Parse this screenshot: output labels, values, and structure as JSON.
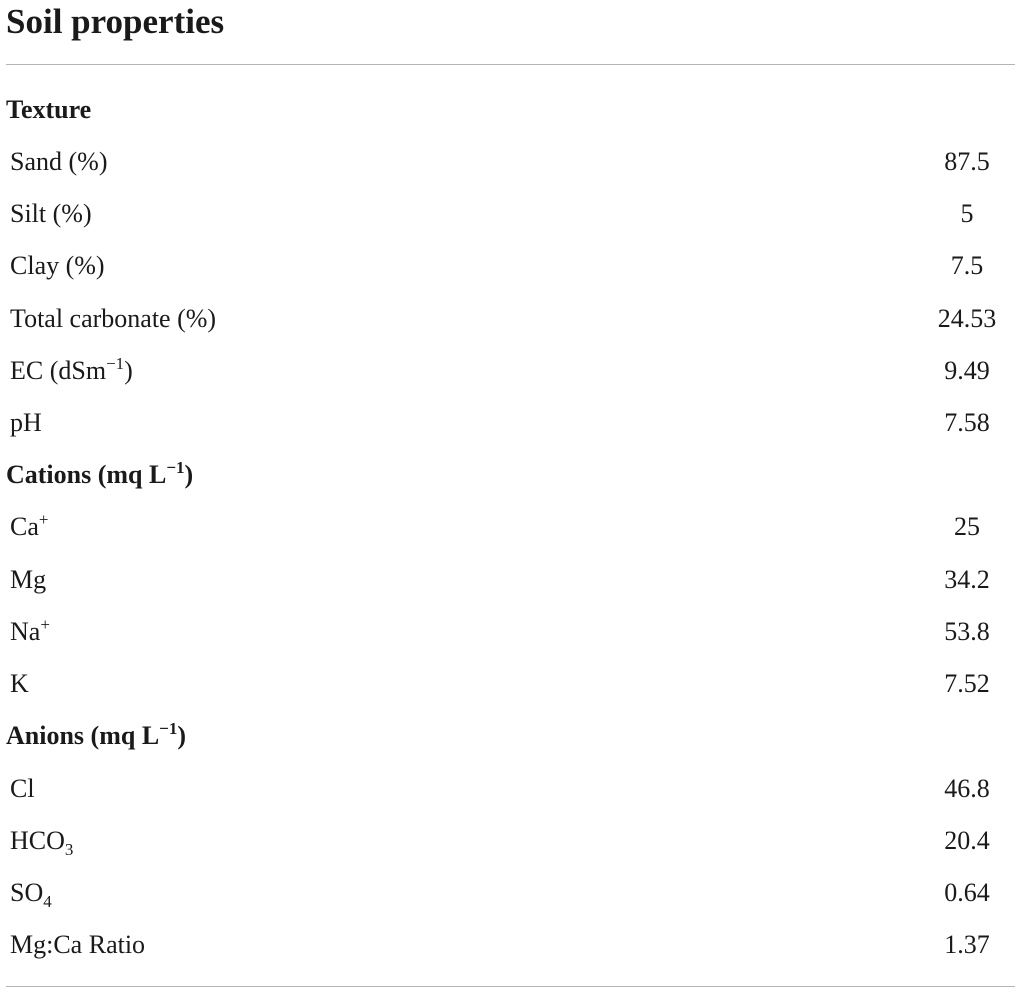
{
  "title": "Soil properties",
  "sections": [
    {
      "heading": "Texture",
      "rows": [
        {
          "label": "Sand (%)",
          "value": "87.5"
        },
        {
          "label": "Silt (%)",
          "value": "5"
        },
        {
          "label": "Clay (%)",
          "value": "7.5"
        },
        {
          "label": "Total carbonate (%)",
          "value": "24.53"
        },
        {
          "label_main": "EC (dSm",
          "label_sup": "−1",
          "label_end": ")",
          "value": "9.49"
        },
        {
          "label": "pH",
          "value": "7.58"
        }
      ]
    },
    {
      "heading_main": "Cations (mq L",
      "heading_sup": "−1",
      "heading_end": ")",
      "rows": [
        {
          "label_main": "Ca",
          "label_sup": "+",
          "value": "25"
        },
        {
          "label": "Mg",
          "value": "34.2"
        },
        {
          "label_main": "Na",
          "label_sup": "+",
          "value": "53.8"
        },
        {
          "label": "K",
          "value": "7.52"
        }
      ]
    },
    {
      "heading_main": "Anions (mq L",
      "heading_sup": "−1",
      "heading_end": ")",
      "rows": [
        {
          "label": "Cl",
          "value": "46.8"
        },
        {
          "label_main": "HCO",
          "label_sub": "3",
          "value": "20.4"
        },
        {
          "label_main": "SO",
          "label_sub": "4",
          "value": "0.64"
        },
        {
          "label": "Mg:Ca Ratio",
          "value": "1.37"
        }
      ]
    }
  ]
}
